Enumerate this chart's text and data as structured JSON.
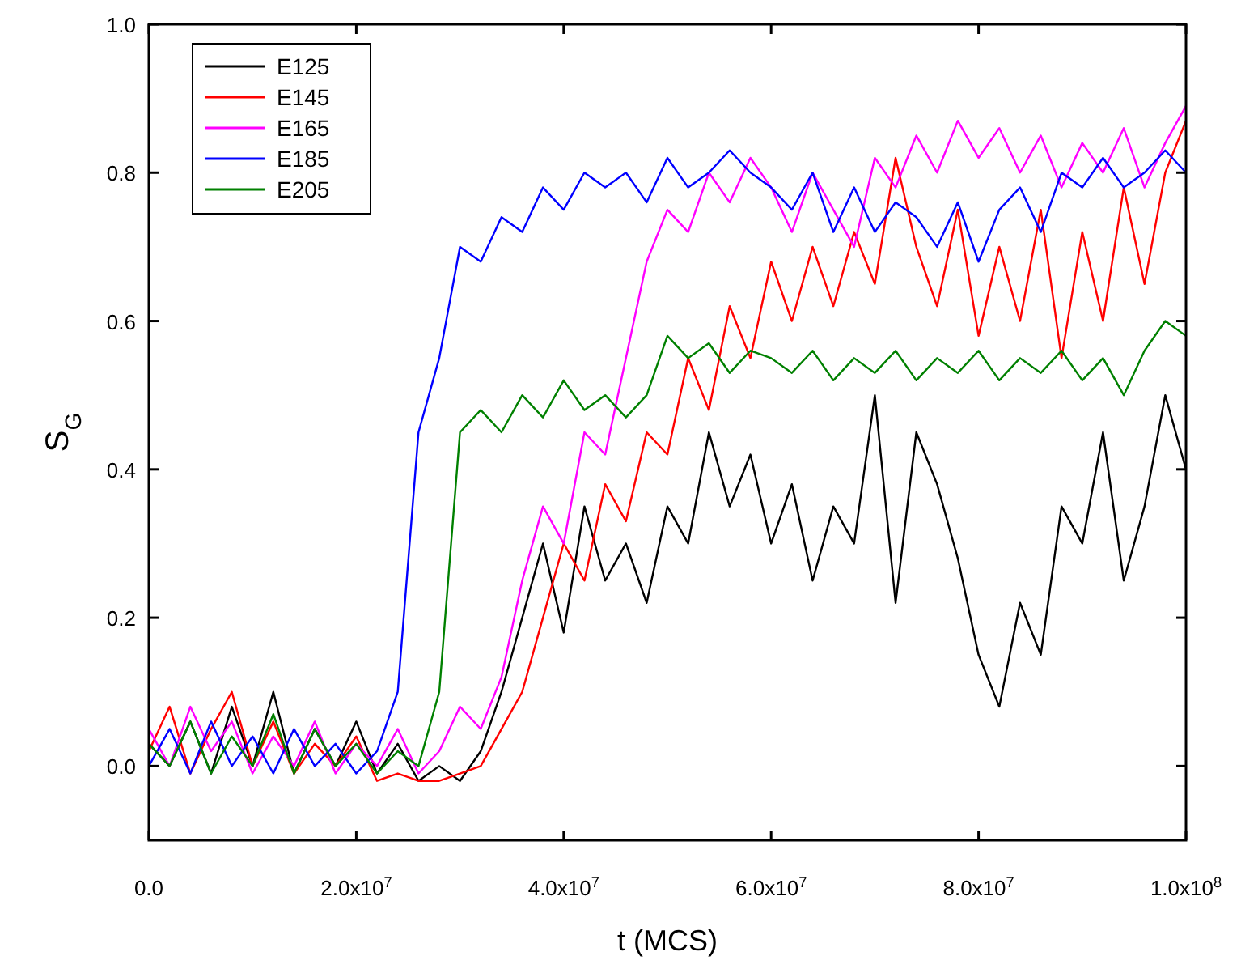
{
  "chart_data": {
    "type": "line",
    "xlabel": "t (MCS)",
    "ylabel": "S$_{G}$",
    "xlim": [
      0,
      100000000
    ],
    "ylim": [
      -0.1,
      1.0
    ],
    "xticks": [
      {
        "value": 0,
        "label": "0.0"
      },
      {
        "value": 20000000,
        "label": "2.0x10$^{7}$"
      },
      {
        "value": 40000000,
        "label": "4.0x10$^{7}$"
      },
      {
        "value": 60000000,
        "label": "6.0x10$^{7}$"
      },
      {
        "value": 80000000,
        "label": "8.0x10$^{7}$"
      },
      {
        "value": 100000000,
        "label": "1.0x10$^{8}$"
      }
    ],
    "yticks": [
      {
        "value": 0,
        "label": "0.0"
      },
      {
        "value": 0.2,
        "label": "0.2"
      },
      {
        "value": 0.4,
        "label": "0.4"
      },
      {
        "value": 0.6,
        "label": "0.6"
      },
      {
        "value": 0.8,
        "label": "0.8"
      },
      {
        "value": 1.0,
        "label": "1.0"
      }
    ],
    "x": [
      0,
      2000000,
      4000000,
      6000000,
      8000000,
      10000000,
      12000000,
      14000000,
      16000000,
      18000000,
      20000000,
      22000000,
      24000000,
      26000000,
      28000000,
      30000000,
      32000000,
      34000000,
      36000000,
      38000000,
      40000000,
      42000000,
      44000000,
      46000000,
      48000000,
      50000000,
      52000000,
      54000000,
      56000000,
      58000000,
      60000000,
      62000000,
      64000000,
      66000000,
      68000000,
      70000000,
      72000000,
      74000000,
      76000000,
      78000000,
      80000000,
      82000000,
      84000000,
      86000000,
      88000000,
      90000000,
      92000000,
      94000000,
      96000000,
      98000000,
      100000000
    ],
    "legend": "top left",
    "grid": false,
    "line_style": "solid",
    "marker": "none",
    "series": [
      {
        "name": "E125",
        "color": "#000000",
        "values": [
          0.03,
          0.0,
          0.06,
          -0.01,
          0.08,
          0.0,
          0.1,
          -0.01,
          0.05,
          0.0,
          0.06,
          -0.01,
          0.03,
          -0.02,
          0.0,
          -0.02,
          0.02,
          0.1,
          0.2,
          0.3,
          0.18,
          0.35,
          0.25,
          0.3,
          0.22,
          0.35,
          0.3,
          0.45,
          0.35,
          0.42,
          0.3,
          0.38,
          0.25,
          0.35,
          0.3,
          0.5,
          0.22,
          0.45,
          0.38,
          0.28,
          0.15,
          0.08,
          0.22,
          0.15,
          0.35,
          0.3,
          0.45,
          0.25,
          0.35,
          0.5,
          0.4
        ]
      },
      {
        "name": "E145",
        "color": "#ff0000",
        "values": [
          0.02,
          0.08,
          -0.01,
          0.05,
          0.1,
          0.0,
          0.06,
          -0.01,
          0.03,
          0.0,
          0.04,
          -0.02,
          -0.01,
          -0.02,
          -0.02,
          -0.01,
          0.0,
          0.05,
          0.1,
          0.2,
          0.3,
          0.25,
          0.38,
          0.33,
          0.45,
          0.42,
          0.55,
          0.48,
          0.62,
          0.55,
          0.68,
          0.6,
          0.7,
          0.62,
          0.72,
          0.65,
          0.82,
          0.7,
          0.62,
          0.75,
          0.58,
          0.7,
          0.6,
          0.75,
          0.55,
          0.72,
          0.6,
          0.78,
          0.65,
          0.8,
          0.87
        ]
      },
      {
        "name": "E165",
        "color": "#ff00ff",
        "values": [
          0.05,
          0.0,
          0.08,
          0.02,
          0.06,
          -0.01,
          0.04,
          0.0,
          0.06,
          -0.01,
          0.03,
          0.0,
          0.05,
          -0.01,
          0.02,
          0.08,
          0.05,
          0.12,
          0.25,
          0.35,
          0.3,
          0.45,
          0.42,
          0.55,
          0.68,
          0.75,
          0.72,
          0.8,
          0.76,
          0.82,
          0.78,
          0.72,
          0.8,
          0.75,
          0.7,
          0.82,
          0.78,
          0.85,
          0.8,
          0.87,
          0.82,
          0.86,
          0.8,
          0.85,
          0.78,
          0.84,
          0.8,
          0.86,
          0.78,
          0.84,
          0.89
        ]
      },
      {
        "name": "E185",
        "color": "#0000ff",
        "values": [
          0.0,
          0.05,
          -0.01,
          0.06,
          0.0,
          0.04,
          -0.01,
          0.05,
          0.0,
          0.03,
          -0.01,
          0.02,
          0.1,
          0.45,
          0.55,
          0.7,
          0.68,
          0.74,
          0.72,
          0.78,
          0.75,
          0.8,
          0.78,
          0.8,
          0.76,
          0.82,
          0.78,
          0.8,
          0.83,
          0.8,
          0.78,
          0.75,
          0.8,
          0.72,
          0.78,
          0.72,
          0.76,
          0.74,
          0.7,
          0.76,
          0.68,
          0.75,
          0.78,
          0.72,
          0.8,
          0.78,
          0.82,
          0.78,
          0.8,
          0.83,
          0.8
        ]
      },
      {
        "name": "E205",
        "color": "#008000",
        "values": [
          0.03,
          0.0,
          0.06,
          -0.01,
          0.04,
          0.0,
          0.07,
          -0.01,
          0.05,
          0.0,
          0.03,
          -0.01,
          0.02,
          0.0,
          0.1,
          0.45,
          0.48,
          0.45,
          0.5,
          0.47,
          0.52,
          0.48,
          0.5,
          0.47,
          0.5,
          0.58,
          0.55,
          0.57,
          0.53,
          0.56,
          0.55,
          0.53,
          0.56,
          0.52,
          0.55,
          0.53,
          0.56,
          0.52,
          0.55,
          0.53,
          0.56,
          0.52,
          0.55,
          0.53,
          0.56,
          0.52,
          0.55,
          0.5,
          0.56,
          0.6,
          0.58
        ]
      }
    ]
  }
}
